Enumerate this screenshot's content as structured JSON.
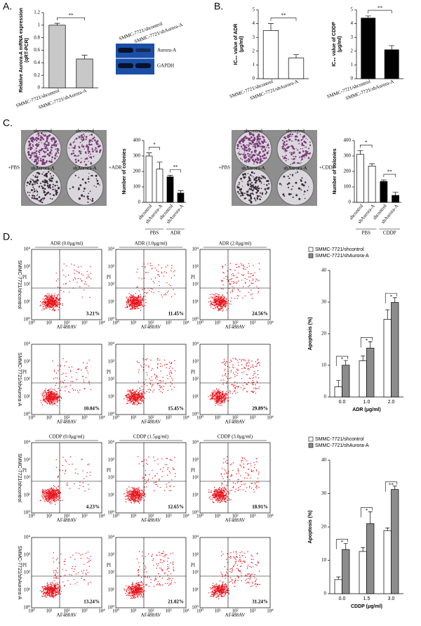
{
  "panel_labels": [
    "A.",
    "B.",
    "C.",
    "D."
  ],
  "western_blot": {
    "lanes": [
      "SMMC-7721/shcontrol",
      "SMMC-7721/shAurora-A"
    ],
    "bands": [
      "Aurora-A",
      "GAPDH"
    ]
  },
  "colony_images": [
    {
      "top_labels": [
        "shcontrol",
        "shcontrol"
      ],
      "bottom_labels": [
        "shAurora-A",
        "shAurora-A"
      ],
      "left": "+PBS",
      "right": "+ADR"
    },
    {
      "top_labels": [
        "shcontrol",
        "shcontrol"
      ],
      "bottom_labels": [
        "shAurora-A",
        "shAurora-A"
      ],
      "left": "+PBS",
      "right": "+CDDP"
    }
  ],
  "flow_axis": {
    "x_label": "AF488AV",
    "y_label": "PI",
    "ticks": [
      "10⁰",
      "10¹",
      "10²",
      "10³",
      "10⁴"
    ]
  },
  "flow_cytometry": [
    {
      "titles": [
        "ADR (0.0μg/ml)",
        "ADR (1.0μg/ml)",
        "ADR (2.0μg/ml)"
      ],
      "row_labels": [
        "SMMC-7721/shcontrol",
        "SMMC-7721/shAurora-A"
      ],
      "percentages": [
        [
          "3.21%",
          "11.45%",
          "24.56%"
        ],
        [
          "10.04%",
          "15.45%",
          "29.89%"
        ]
      ]
    },
    {
      "titles": [
        "CDDP (0.0μg/ml)",
        "CDDP (1.5μg/ml)",
        "CDDP (3.0μg/ml)"
      ],
      "row_labels": [
        "SMMC-7721/shcontrol",
        "SMMC-7721/shAurora-A"
      ],
      "percentages": [
        [
          "4.23%",
          "12.65%",
          "18.91%"
        ],
        [
          "13.24%",
          "21.02%",
          "31.24%"
        ]
      ]
    }
  ],
  "chart_data": [
    {
      "type": "bar",
      "ylabel": [
        "Relative Aurora-A mRNA expression",
        "(qRT-PCR)"
      ],
      "categories": [
        "SMMC-7721/shcontrol",
        "SMMC-7721/shAurora-A"
      ],
      "values": [
        1.0,
        0.46
      ],
      "errors": [
        0.03,
        0.06
      ],
      "colors": [
        "#c8c8c8",
        "#c8c8c8"
      ],
      "ylim": [
        0,
        1.2
      ],
      "yticks": [
        0,
        0.2,
        0.4,
        0.6,
        0.8,
        1,
        1.2
      ],
      "annotations": [
        "**"
      ]
    },
    {
      "type": "bar",
      "ylabel": [
        "IC₅₀ value of ADR",
        "(μg/ml)"
      ],
      "categories": [
        "SMMC-7721/shcontrol",
        "SMMC-7721/shAurora-A"
      ],
      "values": [
        3.5,
        1.5
      ],
      "errors": [
        0.5,
        0.25
      ],
      "colors": [
        "#ffffff",
        "#ffffff"
      ],
      "ylim": [
        0,
        5
      ],
      "yticks": [
        0,
        1,
        2,
        3,
        4,
        5
      ],
      "annotations": [
        "**"
      ]
    },
    {
      "type": "bar",
      "ylabel": [
        "IC₅₀ value of CDDP",
        "(μg/ml)"
      ],
      "categories": [
        "SMMC-7721/shcontrol",
        "SMMC-7721/shAurora-A"
      ],
      "values": [
        4.4,
        2.1
      ],
      "errors": [
        0.15,
        0.3
      ],
      "colors": [
        "#000000",
        "#000000"
      ],
      "ylim": [
        0,
        5
      ],
      "yticks": [
        0,
        1,
        2,
        3,
        4,
        5
      ],
      "annotations": [
        "**"
      ]
    },
    {
      "type": "bar",
      "ylabel": [
        "Number of colonies"
      ],
      "categories": [
        "shcontrol",
        "shAurora-A",
        "shcontrol",
        "shAurora-A"
      ],
      "values": [
        300,
        215,
        165,
        60
      ],
      "errors": [
        20,
        45,
        10,
        15
      ],
      "colors": [
        "#ffffff",
        "#ffffff",
        "#000000",
        "#000000"
      ],
      "group_labels": [
        "PBS",
        "ADR"
      ],
      "ylim": [
        0,
        400
      ],
      "yticks": [
        0,
        100,
        200,
        300,
        400
      ],
      "annotations": [
        "*",
        "**"
      ]
    },
    {
      "type": "bar",
      "ylabel": [
        "Number of colonies"
      ],
      "categories": [
        "shcontrol",
        "shAurora-A",
        "shcontrol",
        "shAurora-A"
      ],
      "values": [
        310,
        235,
        135,
        45
      ],
      "errors": [
        25,
        15,
        10,
        20
      ],
      "colors": [
        "#ffffff",
        "#ffffff",
        "#000000",
        "#000000"
      ],
      "group_labels": [
        "PBS",
        "CDDP"
      ],
      "ylim": [
        0,
        400
      ],
      "yticks": [
        0,
        100,
        200,
        300,
        400
      ],
      "annotations": [
        "*",
        "**"
      ]
    },
    {
      "type": "grouped_bar",
      "ylabel": [
        "Apoptosis (%)"
      ],
      "xlabel": "ADR (μg/ml)",
      "categories": [
        "0.0",
        "1.0",
        "2.0"
      ],
      "series": [
        {
          "name": "SMMC-7721/shcontrol",
          "color": "#ffffff",
          "values": [
            3.21,
            11.45,
            24.56
          ],
          "errors": [
            2,
            1.5,
            3
          ]
        },
        {
          "name": "SMMC-7721/shAurora-A",
          "color": "#8c8c8c",
          "values": [
            10.04,
            15.45,
            29.89
          ],
          "errors": [
            1.5,
            2,
            1.5
          ]
        }
      ],
      "ylim": [
        0,
        40
      ],
      "yticks": [
        0,
        10,
        20,
        30,
        40
      ],
      "annotations": [
        "*",
        "*",
        "*"
      ]
    },
    {
      "type": "grouped_bar",
      "ylabel": [
        "Apoptosis (%)"
      ],
      "xlabel": "CDDP (μg/ml)",
      "categories": [
        "0.0",
        "1.5",
        "3.0"
      ],
      "series": [
        {
          "name": "SMMC-7721/shcontrol",
          "color": "#ffffff",
          "values": [
            4.23,
            12.65,
            18.91
          ],
          "errors": [
            0.8,
            1.2,
            0.8
          ]
        },
        {
          "name": "SMMC-7721/shAurora-A",
          "color": "#8c8c8c",
          "values": [
            13.24,
            21.02,
            31.24
          ],
          "errors": [
            1.8,
            3.5,
            1
          ]
        }
      ],
      "ylim": [
        0,
        40
      ],
      "yticks": [
        0,
        10,
        20,
        30,
        40
      ],
      "annotations": [
        "*",
        "*",
        "**"
      ]
    }
  ]
}
